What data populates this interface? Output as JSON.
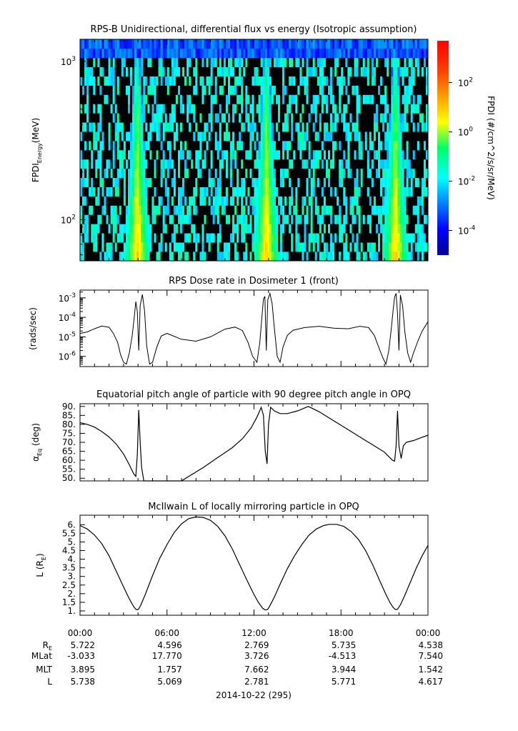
{
  "chart_data": [
    {
      "type": "heatmap",
      "title": "RPS-B  Unidirectional, differential flux vs energy (Isotropic assumption)",
      "ylabel_main": "FPDI",
      "ylabel_sub": "Energy",
      "ylabel_unit": "(MeV)",
      "yscale": "log",
      "ylim": [
        55,
        1380
      ],
      "y_major_ticks": [
        {
          "value": 100,
          "base": "10",
          "exp": "2"
        },
        {
          "value": 1000,
          "base": "10",
          "exp": "3"
        }
      ],
      "xlim_hours": [
        0,
        24
      ],
      "bright_band_centers_hours": [
        3.95,
        12.85,
        21.75
      ],
      "colorbar": {
        "label": "FPDI (#/cm^2/s/sr/MeV)",
        "scale": "log",
        "range": [
          1e-05,
          5000
        ],
        "ticks": [
          {
            "value": 0.0001,
            "base": "10",
            "exp": "-4"
          },
          {
            "value": 0.01,
            "base": "10",
            "exp": "-2"
          },
          {
            "value": 1,
            "base": "10",
            "exp": "0"
          },
          {
            "value": 100,
            "base": "10",
            "exp": "2"
          }
        ]
      }
    },
    {
      "type": "line",
      "title": "RPS  Dose rate in Dosimeter 1 (front)",
      "ylabel": "(rads/sec)",
      "yscale": "log",
      "ylim": [
        3e-07,
        0.0025
      ],
      "yticks": [
        {
          "value": 1e-06,
          "base": "10",
          "exp": "-6"
        },
        {
          "value": 1e-05,
          "base": "10",
          "exp": "-5"
        },
        {
          "value": 0.0001,
          "base": "10",
          "exp": "-4"
        },
        {
          "value": 0.001,
          "base": "10",
          "exp": "-3"
        }
      ],
      "x": [
        0,
        0.5,
        1,
        1.5,
        2,
        2.3,
        2.6,
        2.8,
        3.0,
        3.2,
        3.4,
        3.6,
        3.75,
        3.85,
        3.95,
        4.05,
        4.15,
        4.3,
        4.45,
        4.6,
        4.8,
        5.0,
        5.3,
        5.6,
        6,
        7,
        8,
        9,
        10,
        10.7,
        11.2,
        11.6,
        11.9,
        12.2,
        12.4,
        12.55,
        12.65,
        12.75,
        12.85,
        12.95,
        13.1,
        13.25,
        13.4,
        13.6,
        13.8,
        14.0,
        14.3,
        14.7,
        15.5,
        16.5,
        17.5,
        18.5,
        19.3,
        19.9,
        20.3,
        20.6,
        20.9,
        21.1,
        21.3,
        21.45,
        21.6,
        21.7,
        21.8,
        21.9,
        22.0,
        22.1,
        22.25,
        22.4,
        22.6,
        22.8,
        23.0,
        23.3,
        23.6,
        24
      ],
      "values": [
        1.5e-05,
        1.8e-05,
        2.6e-05,
        3.6e-05,
        3.1e-05,
        1.5e-05,
        5e-06,
        1.2e-06,
        5e-07,
        4e-07,
        1.5e-06,
        1.2e-05,
        0.00012,
        0.00065,
        0.0002,
        2e-06,
        0.0004,
        0.0015,
        0.00022,
        3.5e-06,
        4e-07,
        5e-07,
        3e-06,
        1.1e-05,
        1.5e-05,
        7.5e-06,
        6e-06,
        1e-05,
        2.5e-05,
        3.2e-05,
        2.1e-05,
        5e-06,
        1e-06,
        5e-07,
        5e-06,
        0.00012,
        0.00085,
        0.0012,
        2e-06,
        0.0008,
        0.0017,
        0.0005,
        3e-05,
        1e-06,
        5e-07,
        3e-06,
        1.2e-05,
        2.2e-05,
        3e-05,
        3.5e-05,
        2.8e-05,
        2.6e-05,
        3.5e-05,
        3e-05,
        1.2e-05,
        3e-06,
        8e-07,
        4e-07,
        2e-06,
        2e-05,
        0.00025,
        0.0011,
        0.0017,
        0.00015,
        2e-06,
        0.0014,
        0.0004,
        2e-05,
        1.5e-06,
        5e-07,
        1.5e-06,
        6e-06,
        2e-05,
        6e-05
      ]
    },
    {
      "type": "line",
      "title": "Equatorial pitch angle of particle with 90 degree pitch angle in OPQ",
      "ylabel_main": "α",
      "ylabel_sub": "Eq",
      "ylabel_unit": " (deg)",
      "ylim": [
        48.5,
        91.5
      ],
      "yticks": [
        50,
        55,
        60,
        65,
        70,
        75,
        80,
        85,
        90
      ],
      "tick_labels": [
        "50.",
        "55.",
        "60.",
        "65.",
        "70.",
        "75.",
        "80.",
        "85.",
        "90."
      ],
      "x": [
        0,
        0.5,
        1.0,
        1.5,
        2.0,
        2.5,
        3.0,
        3.4,
        3.7,
        3.85,
        3.95,
        4.05,
        4.15,
        4.25,
        4.4,
        4.6,
        4.8,
        7.0,
        7.5,
        8.5,
        9.5,
        10.5,
        11.2,
        11.8,
        12.2,
        12.5,
        12.65,
        12.78,
        12.9,
        13.0,
        13.15,
        13.4,
        13.8,
        14.3,
        15.0,
        15.75,
        16.5,
        17.5,
        18.5,
        19.5,
        20.5,
        21.0,
        21.3,
        21.55,
        21.7,
        21.8,
        21.9,
        22.0,
        22.15,
        22.3,
        22.5,
        23.0,
        23.5,
        24
      ],
      "values": [
        81,
        80,
        78.5,
        76,
        73,
        69,
        63.5,
        57.5,
        52.5,
        51,
        63,
        88,
        70,
        56,
        48.5,
        48.5,
        48.5,
        48.5,
        51,
        56,
        61.5,
        67,
        72,
        78,
        84,
        89.5,
        85,
        65,
        58,
        80,
        89.5,
        87.5,
        86,
        86,
        87.5,
        90,
        87,
        82,
        77,
        72,
        67,
        64.5,
        62,
        60,
        59.5,
        68,
        87.5,
        68,
        61,
        68,
        70,
        71,
        72.5,
        74
      ]
    },
    {
      "type": "line",
      "title": "McIlwain L of locally mirroring particle in OPQ",
      "ylabel_main": "L (R",
      "ylabel_sub": "E",
      "ylabel_unit": ")",
      "ylim": [
        0.75,
        6.55
      ],
      "yticks": [
        1,
        1.5,
        2,
        2.5,
        3,
        3.5,
        4,
        4.5,
        5,
        5.5,
        6
      ],
      "tick_labels": [
        "1.",
        "1.5",
        "2.",
        "2.5",
        "3.",
        "3.5",
        "4.",
        "4.5",
        "5.",
        "5.5",
        "6."
      ],
      "x": [
        0,
        0.5,
        1.0,
        1.5,
        2.0,
        2.5,
        3.0,
        3.4,
        3.7,
        3.85,
        3.95,
        4.05,
        4.2,
        4.5,
        5.0,
        5.5,
        6.0,
        6.5,
        7.0,
        7.5,
        8.0,
        8.5,
        9.0,
        9.5,
        10.0,
        10.5,
        11.0,
        11.5,
        12.0,
        12.3,
        12.6,
        12.75,
        12.85,
        12.95,
        13.1,
        13.4,
        13.8,
        14.3,
        14.8,
        15.3,
        15.8,
        16.3,
        16.8,
        17.2,
        17.7,
        18.2,
        18.7,
        19.2,
        19.7,
        20.2,
        20.7,
        21.1,
        21.4,
        21.6,
        21.75,
        21.9,
        22.1,
        22.4,
        22.8,
        23.2,
        23.6,
        24
      ],
      "values": [
        5.95,
        5.75,
        5.4,
        4.9,
        4.2,
        3.3,
        2.4,
        1.7,
        1.25,
        1.1,
        1.07,
        1.12,
        1.35,
        1.95,
        3.05,
        4.05,
        4.85,
        5.55,
        6.05,
        6.35,
        6.45,
        6.42,
        6.25,
        5.9,
        5.35,
        4.6,
        3.7,
        2.8,
        1.95,
        1.5,
        1.15,
        1.07,
        1.06,
        1.1,
        1.3,
        1.8,
        2.55,
        3.45,
        4.2,
        4.85,
        5.4,
        5.75,
        5.95,
        6.02,
        6.02,
        5.9,
        5.6,
        5.15,
        4.5,
        3.65,
        2.7,
        1.95,
        1.45,
        1.2,
        1.08,
        1.1,
        1.35,
        1.9,
        2.7,
        3.5,
        4.2,
        4.8
      ]
    }
  ],
  "time_axis": {
    "hours": [
      0,
      6,
      12,
      18,
      24
    ],
    "labels": [
      "00:00",
      "06:00",
      "12:00",
      "18:00",
      "00:00"
    ],
    "date_label": "2014-10-22 (295)"
  },
  "ephemeris": {
    "row_labels": [
      {
        "main": "R",
        "sub": "E"
      },
      {
        "main": "MLat",
        "sub": ""
      },
      {
        "main": "MLT",
        "sub": ""
      },
      {
        "main": "L",
        "sub": ""
      }
    ],
    "rows": [
      [
        "5.722",
        "4.596",
        "2.769",
        "5.735",
        "4.538"
      ],
      [
        "-3.033",
        "17.770",
        "3.726",
        "-4.513",
        "7.540"
      ],
      [
        "3.895",
        "1.757",
        "7.662",
        "3.944",
        "1.542"
      ],
      [
        "5.738",
        "5.069",
        "2.781",
        "5.771",
        "4.617"
      ]
    ]
  }
}
